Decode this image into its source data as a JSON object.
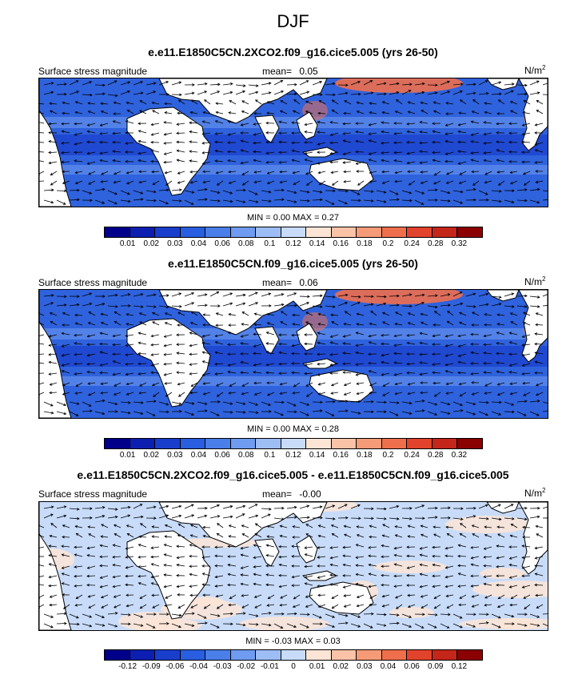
{
  "suptitle": "DJF",
  "panels": [
    {
      "title": "e.e11.E1850C5CN.2XCO2.f09_g16.cice5.005 (yrs 26-50)",
      "left_label": "Surface stress magnitude",
      "mean_label": "mean=",
      "mean_value": "0.05",
      "units": "N/m",
      "units_sup": "2",
      "minmax": "MIN =  0.00 MAX =  0.27"
    },
    {
      "title": "e.e11.E1850C5CN.f09_g16.cice5.005 (yrs 26-50)",
      "left_label": "Surface stress magnitude",
      "mean_label": "mean=",
      "mean_value": "0.06",
      "units": "N/m",
      "units_sup": "2",
      "minmax": "MIN =  0.00 MAX =  0.28"
    },
    {
      "title": "e.e11.E1850C5CN.2XCO2.f09_g16.cice5.005 - e.e11.E1850C5CN.f09_g16.cice5.005",
      "left_label": "Surface stress magnitude",
      "mean_label": "mean=",
      "mean_value": "-0.00",
      "units": "N/m",
      "units_sup": "2",
      "minmax": "MIN = -0.03 MAX =  0.03"
    }
  ],
  "colorbars": {
    "abs_colors": [
      "#00008b",
      "#0d1fb0",
      "#1a3ecc",
      "#2a5ee0",
      "#4a7ee8",
      "#6f9cf0",
      "#9dbdf5",
      "#c8dcfa",
      "#fde5d6",
      "#fac3a8",
      "#f59b78",
      "#ef6f4c",
      "#e2432c",
      "#c4261a",
      "#8b0000"
    ],
    "abs_ticks": [
      "0.01",
      "0.02",
      "0.03",
      "0.04",
      "0.06",
      "0.08",
      "0.1",
      "0.12",
      "0.14",
      "0.16",
      "0.18",
      "0.2",
      "0.24",
      "0.28",
      "0.32"
    ],
    "diff_colors": [
      "#00008b",
      "#0d1fb0",
      "#1a3ecc",
      "#2a5ee0",
      "#4a7ee8",
      "#6f9cf0",
      "#9dbdf5",
      "#c8dcfa",
      "#fde5d6",
      "#fac3a8",
      "#f59b78",
      "#ef6f4c",
      "#e2432c",
      "#c4261a",
      "#8b0000"
    ],
    "diff_ticks": [
      "-0.12",
      "-0.09",
      "-0.06",
      "-0.04",
      "-0.03",
      "-0.02",
      "-0.01",
      "0",
      "0.01",
      "0.02",
      "0.03",
      "0.04",
      "0.06",
      "0.09",
      "0.12"
    ]
  },
  "colors": {
    "ocean_abs": "#2f62dd",
    "ocean_abs_dark": "#1a3ecc",
    "ocean_abs_light": "#6f9cf0",
    "high_stress": "#ef6f4c",
    "diff_neutral": "#c8dcfa",
    "diff_pos": "#fde5d6",
    "land": "#ffffff"
  }
}
